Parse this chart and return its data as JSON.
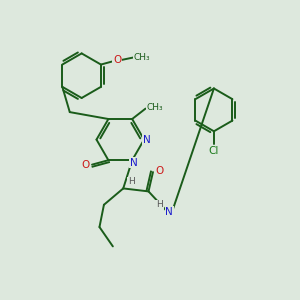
{
  "bg_color": "#dde8dd",
  "bond_color": "#1a5c1a",
  "N_color": "#1a1acc",
  "O_color": "#cc1a1a",
  "Cl_color": "#1a7a1a",
  "H_color": "#555555",
  "fig_size": [
    3.0,
    3.0
  ],
  "dpi": 100,
  "xlim": [
    0,
    10
  ],
  "ylim": [
    0,
    10
  ]
}
